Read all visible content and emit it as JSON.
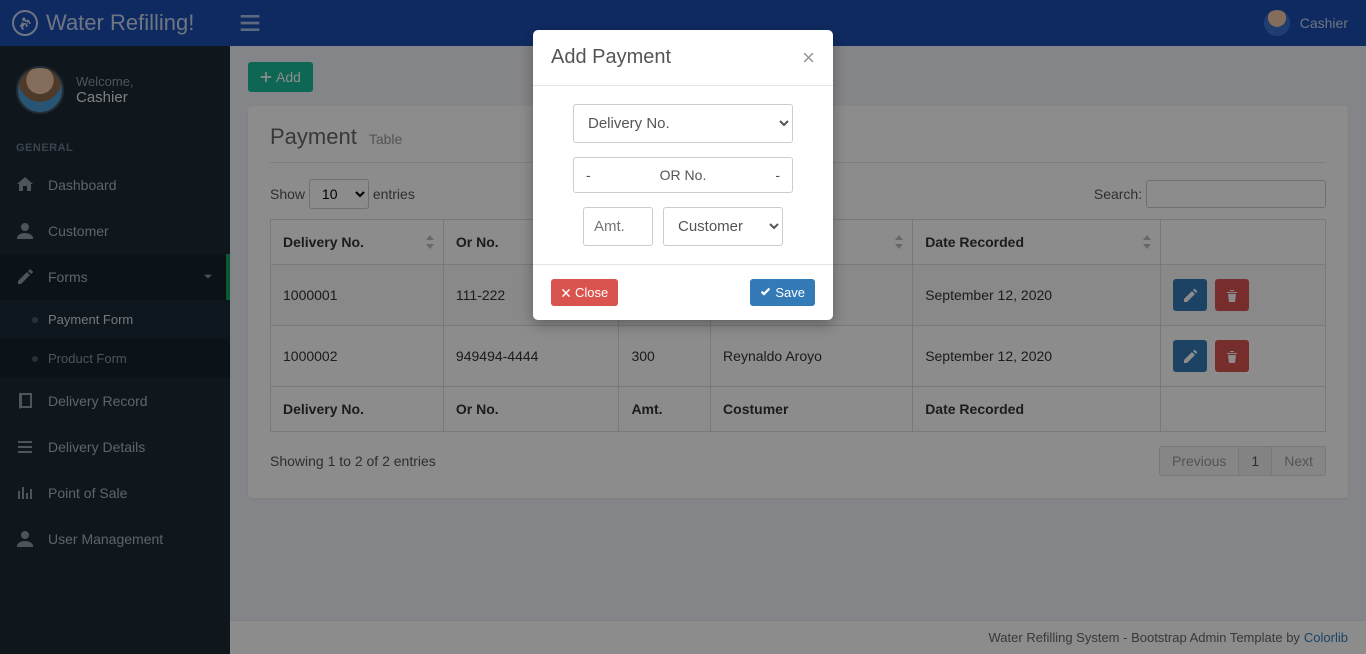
{
  "brand": "Water Refilling!",
  "top_user": {
    "name": "Cashier"
  },
  "sidebar": {
    "welcome": "Welcome,",
    "role": "Cashier",
    "section": "GENERAL",
    "items": [
      {
        "label": "Dashboard",
        "icon": "home"
      },
      {
        "label": "Customer",
        "icon": "user"
      },
      {
        "label": "Forms",
        "icon": "edit",
        "expandable": true,
        "open": true,
        "children": [
          {
            "label": "Payment Form",
            "active": true
          },
          {
            "label": "Product Form"
          }
        ]
      },
      {
        "label": "Delivery Record",
        "icon": "book"
      },
      {
        "label": "Delivery Details",
        "icon": "list"
      },
      {
        "label": "Point of Sale",
        "icon": "bars"
      },
      {
        "label": "User Management",
        "icon": "user"
      }
    ]
  },
  "add_btn": "Add",
  "panel": {
    "title": "Payment",
    "subtitle": "Table"
  },
  "datatable": {
    "show_label": "Show",
    "entries_label": "entries",
    "length_value": "10",
    "search_label": "Search:",
    "columns": [
      "Delivery No.",
      "Or No.",
      "Amt.",
      "Costumer",
      "Date Recorded",
      ""
    ],
    "rows": [
      {
        "delivery": "1000001",
        "or": "111-222",
        "amt": "",
        "cust": "",
        "date": "September 12, 2020"
      },
      {
        "delivery": "1000002",
        "or": "949494-4444",
        "amt": "300",
        "cust": "Reynaldo Aroyo",
        "date": "September 12, 2020"
      }
    ],
    "info": "Showing 1 to 2 of 2 entries",
    "prev": "Previous",
    "page": "1",
    "next": "Next"
  },
  "footer": {
    "text": "Water Refilling System - Bootstrap Admin Template by",
    "link": "Colorlib"
  },
  "modal": {
    "title": "Add Payment",
    "delivery_sel": "Delivery No.",
    "or_dash": "-",
    "or_label": "OR No.",
    "amt_placeholder": "Amt.",
    "customer_sel": "Customer",
    "close": "Close",
    "save": "Save"
  }
}
